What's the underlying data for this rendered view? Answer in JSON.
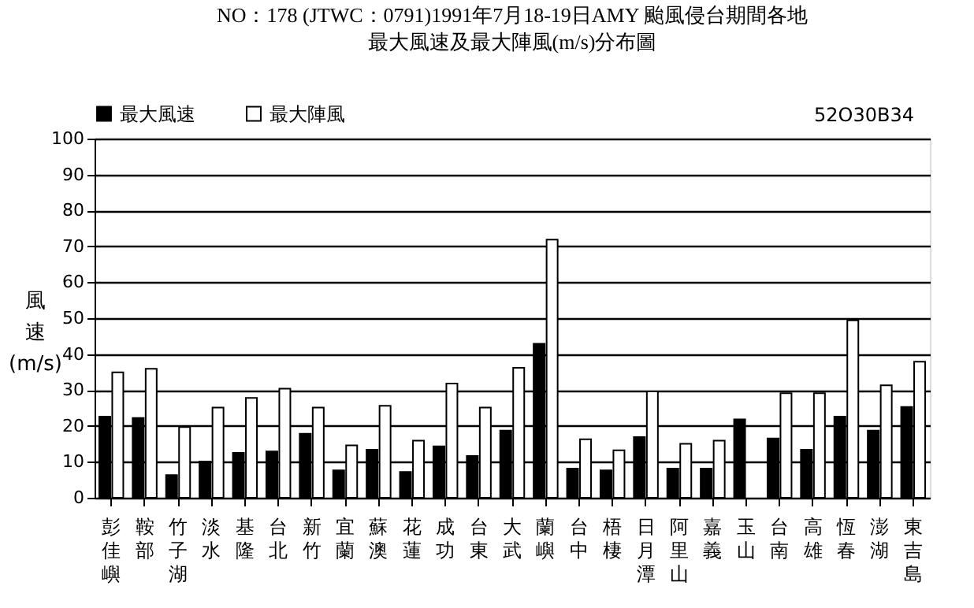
{
  "chart_data": {
    "type": "bar",
    "title": "NO：178 (JTWC：0791)1991年7月18-19日AMY 颱風侵台期間各地",
    "subtitle": "最大風速及最大陣風(m/s)分布圖",
    "ylabel": "風速(m/s)",
    "categories": [
      "彭佳嶼",
      "鞍部",
      "竹子湖",
      "淡水",
      "基隆",
      "台北",
      "新竹",
      "宜蘭",
      "蘇澳",
      "花蓮",
      "成功",
      "台東",
      "大武",
      "蘭嶼",
      "台中",
      "梧棲",
      "日月潭",
      "阿里山",
      "嘉義",
      "玉山",
      "台南",
      "高雄",
      "恆春",
      "澎湖",
      "東吉島"
    ],
    "series": [
      {
        "name": "最大風速",
        "color": "#000000",
        "values": [
          22.6,
          22.2,
          6.3,
          10.1,
          12.5,
          12.9,
          17.8,
          7.6,
          13.4,
          7.2,
          14.3,
          11.6,
          18.7,
          42.9,
          8.1,
          7.6,
          16.9,
          8.1,
          8.1,
          21.8,
          16.5,
          13.4,
          22.6,
          18.7,
          25.3
        ]
      },
      {
        "name": "最大陣風",
        "color": "#ffffff",
        "values": [
          34.9,
          35.9,
          19.7,
          25.1,
          27.8,
          30.4,
          25.1,
          14.6,
          25.6,
          15.9,
          31.8,
          25.1,
          36.2,
          71.9,
          16.3,
          13.2,
          29.6,
          15.0,
          15.9,
          null,
          29.1,
          29.1,
          49.4,
          31.3,
          37.9
        ]
      }
    ],
    "ylim": [
      0,
      100
    ],
    "yticks": [
      0,
      10,
      20,
      30,
      40,
      50,
      60,
      70,
      80,
      90,
      100
    ],
    "grid": "y",
    "legend": "top left",
    "annotations": [
      "52O30B34"
    ]
  }
}
